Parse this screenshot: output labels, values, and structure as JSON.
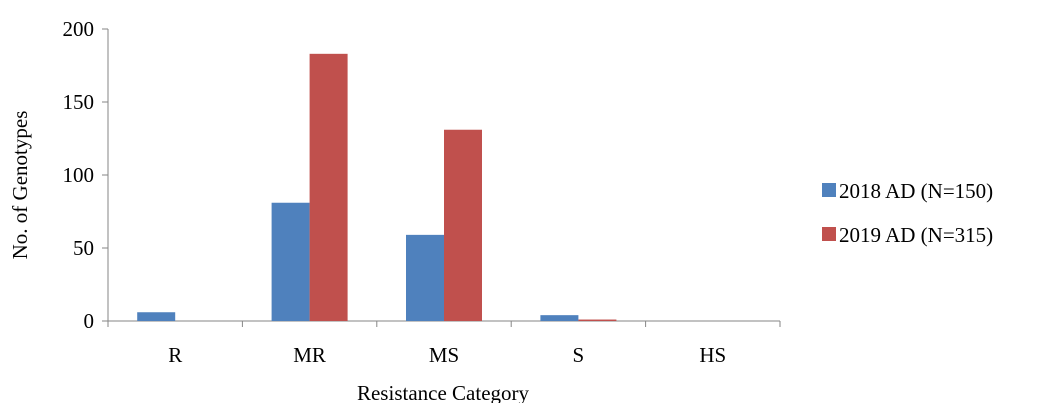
{
  "chart_data": {
    "type": "bar",
    "title": "",
    "xlabel": "Resistance Category",
    "ylabel": "No. of Genotypes",
    "categories": [
      "R",
      "MR",
      "MS",
      "S",
      "HS"
    ],
    "series": [
      {
        "name": "2018 AD (N=150)",
        "color": "#4f81bd",
        "values": [
          6,
          81,
          59,
          4,
          0
        ]
      },
      {
        "name": "2019 AD (N=315)",
        "color": "#c0504d",
        "values": [
          0,
          183,
          131,
          1,
          0
        ]
      }
    ],
    "ylim": [
      0,
      200
    ],
    "yticks": [
      0,
      50,
      100,
      150,
      200
    ],
    "grid": false,
    "legend_position": "right"
  }
}
